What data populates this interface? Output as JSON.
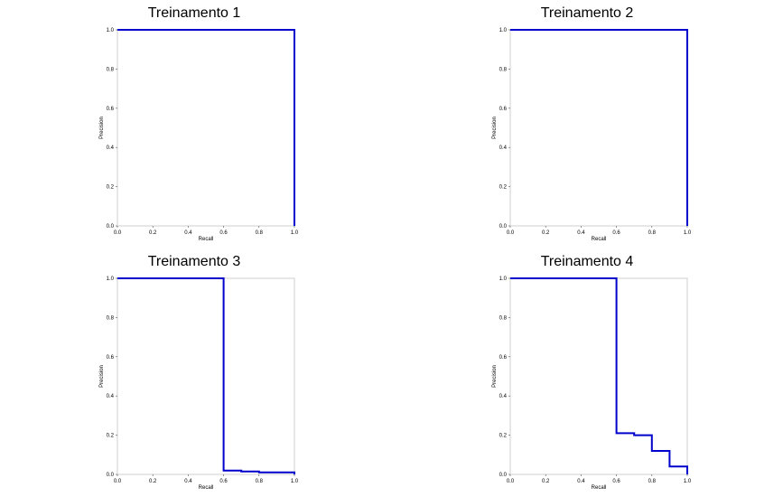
{
  "chart_data": [
    {
      "type": "line",
      "title": "Treinamento 1",
      "xlabel": "Recall",
      "ylabel": "Precision",
      "xlim": [
        0,
        1
      ],
      "ylim": [
        0,
        1
      ],
      "x_ticks": [
        "0.0",
        "0.2",
        "0.4",
        "0.6",
        "0.8",
        "1.0"
      ],
      "y_ticks": [
        "0.0",
        "0.2",
        "0.4",
        "0.6",
        "0.8",
        "1.0"
      ],
      "grid": false,
      "color": "#0000cc",
      "series": [
        {
          "points": [
            [
              0,
              1
            ],
            [
              1,
              1
            ],
            [
              1,
              0
            ]
          ]
        }
      ]
    },
    {
      "type": "line",
      "title": "Treinamento 2",
      "xlabel": "Recall",
      "ylabel": "Precision",
      "xlim": [
        0,
        1
      ],
      "ylim": [
        0,
        1
      ],
      "x_ticks": [
        "0.0",
        "0.2",
        "0.4",
        "0.6",
        "0.8",
        "1.0"
      ],
      "y_ticks": [
        "0.0",
        "0.2",
        "0.4",
        "0.6",
        "0.8",
        "1.0"
      ],
      "grid": false,
      "color": "#0000cc",
      "series": [
        {
          "points": [
            [
              0,
              1
            ],
            [
              1,
              1
            ],
            [
              1,
              0
            ]
          ]
        }
      ]
    },
    {
      "type": "line",
      "title": "Treinamento 3",
      "xlabel": "Recall",
      "ylabel": "Precision",
      "xlim": [
        0,
        1
      ],
      "ylim": [
        0,
        1
      ],
      "x_ticks": [
        "0.0",
        "0.2",
        "0.4",
        "0.6",
        "0.8",
        "1.0"
      ],
      "y_ticks": [
        "0.0",
        "0.2",
        "0.4",
        "0.6",
        "0.8",
        "1.0"
      ],
      "grid": false,
      "color": "#0000cc",
      "series": [
        {
          "points": [
            [
              0,
              1
            ],
            [
              0.6,
              1
            ],
            [
              0.6,
              0.02
            ],
            [
              0.7,
              0.02
            ],
            [
              0.7,
              0.015
            ],
            [
              0.8,
              0.015
            ],
            [
              0.8,
              0.01
            ],
            [
              1,
              0.01
            ],
            [
              1,
              0
            ]
          ]
        }
      ]
    },
    {
      "type": "line",
      "title": "Treinamento 4",
      "xlabel": "Recall",
      "ylabel": "Precision",
      "xlim": [
        0,
        1
      ],
      "ylim": [
        0,
        1
      ],
      "x_ticks": [
        "0.0",
        "0.2",
        "0.4",
        "0.6",
        "0.8",
        "1.0"
      ],
      "y_ticks": [
        "0.0",
        "0.2",
        "0.4",
        "0.6",
        "0.8",
        "1.0"
      ],
      "grid": false,
      "color": "#0000cc",
      "series": [
        {
          "points": [
            [
              0,
              1
            ],
            [
              0.6,
              1
            ],
            [
              0.6,
              0.21
            ],
            [
              0.7,
              0.21
            ],
            [
              0.7,
              0.2
            ],
            [
              0.8,
              0.2
            ],
            [
              0.8,
              0.12
            ],
            [
              0.9,
              0.12
            ],
            [
              0.9,
              0.04
            ],
            [
              1,
              0.04
            ],
            [
              1,
              0
            ]
          ]
        }
      ]
    }
  ]
}
